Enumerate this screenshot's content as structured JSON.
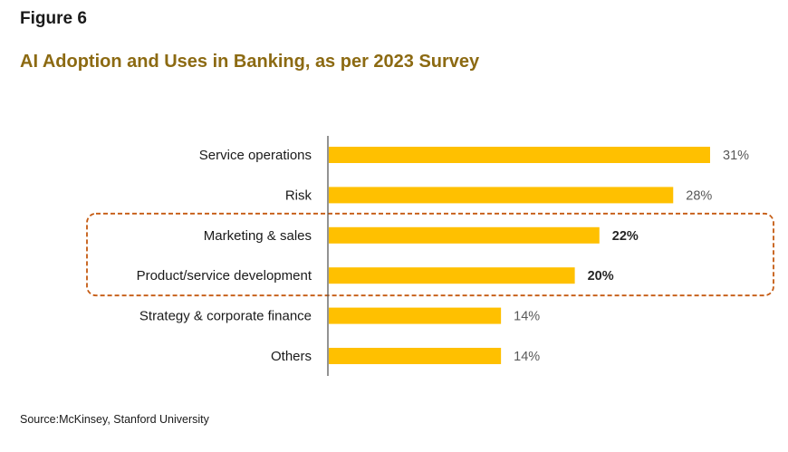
{
  "figure_label": "Figure 6",
  "title": "AI Adoption and Uses in Banking, as per 2023 Survey",
  "source": "Source:McKinsey, Stanford University",
  "colors": {
    "bar": "#FFC000",
    "title": "#8C6A12",
    "highlight_box": "#C55A11",
    "axis": "#595959"
  },
  "chart_data": {
    "type": "bar",
    "orientation": "horizontal",
    "categories": [
      "Service operations",
      "Risk",
      "Marketing & sales",
      "Product/service development",
      "Strategy & corporate finance",
      "Others"
    ],
    "values": [
      31,
      28,
      22,
      20,
      14,
      14
    ],
    "data_labels": [
      "31%",
      "28%",
      "22%",
      "20%",
      "14%",
      "14%"
    ],
    "bold_labels": [
      false,
      false,
      true,
      true,
      false,
      false
    ],
    "highlighted_categories": [
      "Marketing & sales",
      "Product/service development"
    ],
    "title": "AI Adoption and Uses in Banking, as per 2023 Survey",
    "xlabel": "",
    "ylabel": "",
    "xlim": [
      0,
      31
    ],
    "grid": false,
    "legend": "none"
  }
}
